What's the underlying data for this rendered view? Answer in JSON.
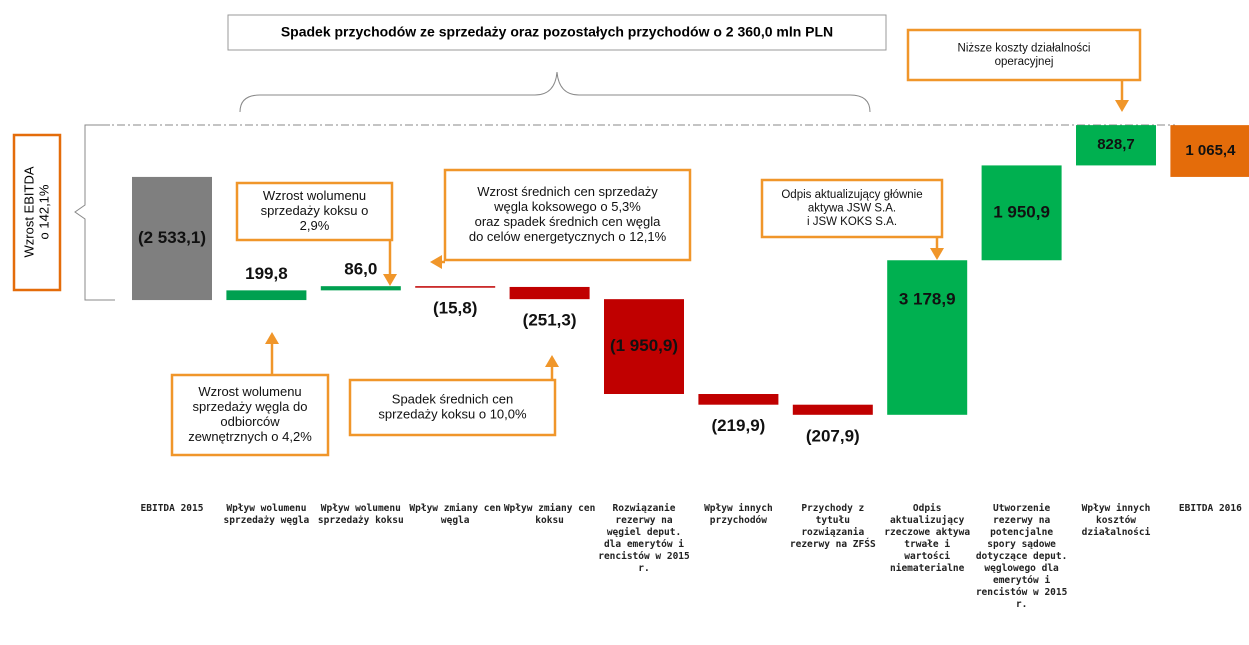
{
  "chart_data": {
    "type": "waterfall",
    "title": "Spadek przychodów ze sprzedaży oraz pozostałych przychodów o 2 360,0 mln PLN",
    "side_label": [
      "Wzrost EBITDA",
      "o 142,1%"
    ],
    "categories": [
      "EBITDA 2015",
      "Wpływ wolumenu sprzedaży węgla",
      "Wpływ wolumenu sprzedaży koksu",
      "Wpływ zmiany cen węgla",
      "Wpływ zmiany cen koksu",
      "Rozwiązanie rezerwy na węgiel deput. dla emerytów i rencistów w 2015 r.",
      "Wpływ innych przychodów",
      "Przychody z tytułu rozwiązania rezerwy na ZFŚS",
      "Odpis aktualizujący rzeczowe aktywa trwałe i wartości niematerialne",
      "Utworzenie rezerwy na potencjalne spory sądowe dotyczące deput. węglowego dla emerytów i rencistów w 2015 r.",
      "Wpływ innych kosztów działalności",
      "EBITDA 2016"
    ],
    "values": [
      -2533.1,
      199.8,
      86.0,
      -15.8,
      -251.3,
      -1950.9,
      -219.9,
      -207.9,
      3178.9,
      1950.9,
      828.7,
      1065.4
    ],
    "value_labels": [
      "(2 533,1)",
      "199,8",
      "86,0",
      "(15,8)",
      "(251,3)",
      "(1 950,9)",
      "(219,9)",
      "(207,9)",
      "3 178,9",
      "1 950,9",
      "828,7",
      "1 065,4"
    ],
    "colors": [
      "#7f7f7f",
      "#00a050",
      "#00a050",
      "#c00000",
      "#c00000",
      "#c00000",
      "#c00000",
      "#c00000",
      "#00b050",
      "#00b050",
      "#00b050",
      "#e46c0a"
    ],
    "ylim": [
      -5000,
      1500
    ],
    "annotations": [
      {
        "text": [
          "Wzrost wolumenu",
          "sprzedaży koksu o",
          "2,9%"
        ]
      },
      {
        "text": [
          "Wzrost  średnich cen sprzedaży",
          "węgla koksowego o 5,3%",
          "oraz spadek średnich cen węgla",
          "do celów energetycznych o 12,1%"
        ]
      },
      {
        "text": [
          "Odpis aktualizujący głównie",
          "aktywa  JSW  S.A.",
          "i  JSW KOKS S.A."
        ]
      },
      {
        "text": [
          "Niższe koszty działalności",
          "operacyjnej"
        ]
      },
      {
        "text": [
          "Wzrost wolumenu",
          "sprzedaży węgla do",
          "odbiorców",
          "zewnętrznych o 4,2%"
        ]
      },
      {
        "text": [
          "Spadek średnich cen",
          "sprzedaży koksu o 10,0%"
        ]
      }
    ]
  }
}
